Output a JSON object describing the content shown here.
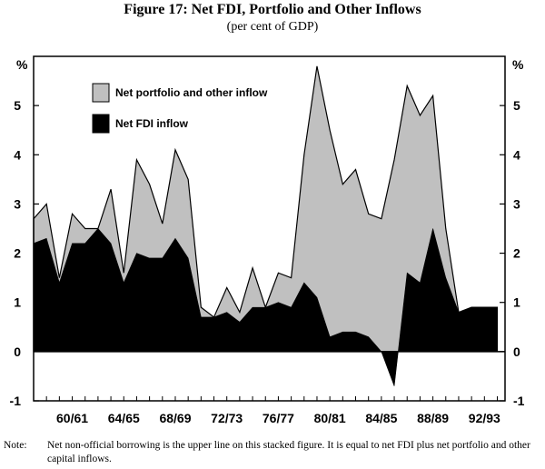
{
  "chart_data": {
    "type": "area",
    "title": "Figure 17: Net FDI, Portfolio and Other Inflows",
    "subtitle": "(per cent of GDP)",
    "ylabel_left": "%",
    "ylabel_right": "%",
    "ylim": [
      -1,
      6
    ],
    "yticks": [
      -1,
      0,
      1,
      2,
      3,
      4,
      5
    ],
    "xticks": [
      {
        "label": "60/61",
        "x": 1960
      },
      {
        "label": "64/65",
        "x": 1964
      },
      {
        "label": "68/69",
        "x": 1968
      },
      {
        "label": "72/73",
        "x": 1972
      },
      {
        "label": "76/77",
        "x": 1976
      },
      {
        "label": "80/81",
        "x": 1980
      },
      {
        "label": "84/85",
        "x": 1984
      },
      {
        "label": "88/89",
        "x": 1988
      },
      {
        "label": "92/93",
        "x": 1992
      }
    ],
    "xlim": [
      1957,
      1993.6
    ],
    "x": [
      1957,
      1958,
      1959,
      1960,
      1961,
      1962,
      1963,
      1964,
      1965,
      1966,
      1967,
      1968,
      1969,
      1970,
      1971,
      1972,
      1973,
      1974,
      1975,
      1976,
      1977,
      1978,
      1979,
      1980,
      1981,
      1982,
      1983,
      1984,
      1985,
      1986,
      1987,
      1988,
      1989,
      1990,
      1991,
      1992,
      1993
    ],
    "series": [
      {
        "name": "Net portfolio and other inflow",
        "color": "#c0c0c0",
        "note": "upper line = net non-official borrowing (total)",
        "values": [
          2.7,
          3.0,
          1.5,
          2.8,
          2.5,
          2.5,
          3.3,
          1.6,
          3.9,
          3.4,
          2.6,
          4.1,
          3.5,
          0.9,
          0.7,
          1.3,
          0.8,
          1.7,
          0.9,
          1.6,
          1.5,
          4.0,
          5.8,
          4.5,
          3.4,
          3.7,
          2.8,
          2.7,
          3.9,
          5.4,
          4.8,
          5.2,
          2.5,
          0.8,
          0.9,
          0.9,
          0.9
        ]
      },
      {
        "name": "Net FDI inflow",
        "color": "#000000",
        "values": [
          2.2,
          2.3,
          1.4,
          2.2,
          2.2,
          2.5,
          2.2,
          1.4,
          2.0,
          1.9,
          1.9,
          2.3,
          1.9,
          0.7,
          0.7,
          0.8,
          0.6,
          0.9,
          0.9,
          1.0,
          0.9,
          1.4,
          1.1,
          0.3,
          0.4,
          0.4,
          0.3,
          0.0,
          -0.7,
          1.6,
          1.4,
          2.5,
          1.5,
          0.8,
          0.9,
          0.9,
          0.9
        ]
      }
    ],
    "legend_position": "top-left",
    "grid": false
  },
  "note": {
    "label": "Note:",
    "text": "Net non-official borrowing is the upper line on this stacked figure. It is equal to net FDI plus net portfolio and other capital inflows."
  }
}
